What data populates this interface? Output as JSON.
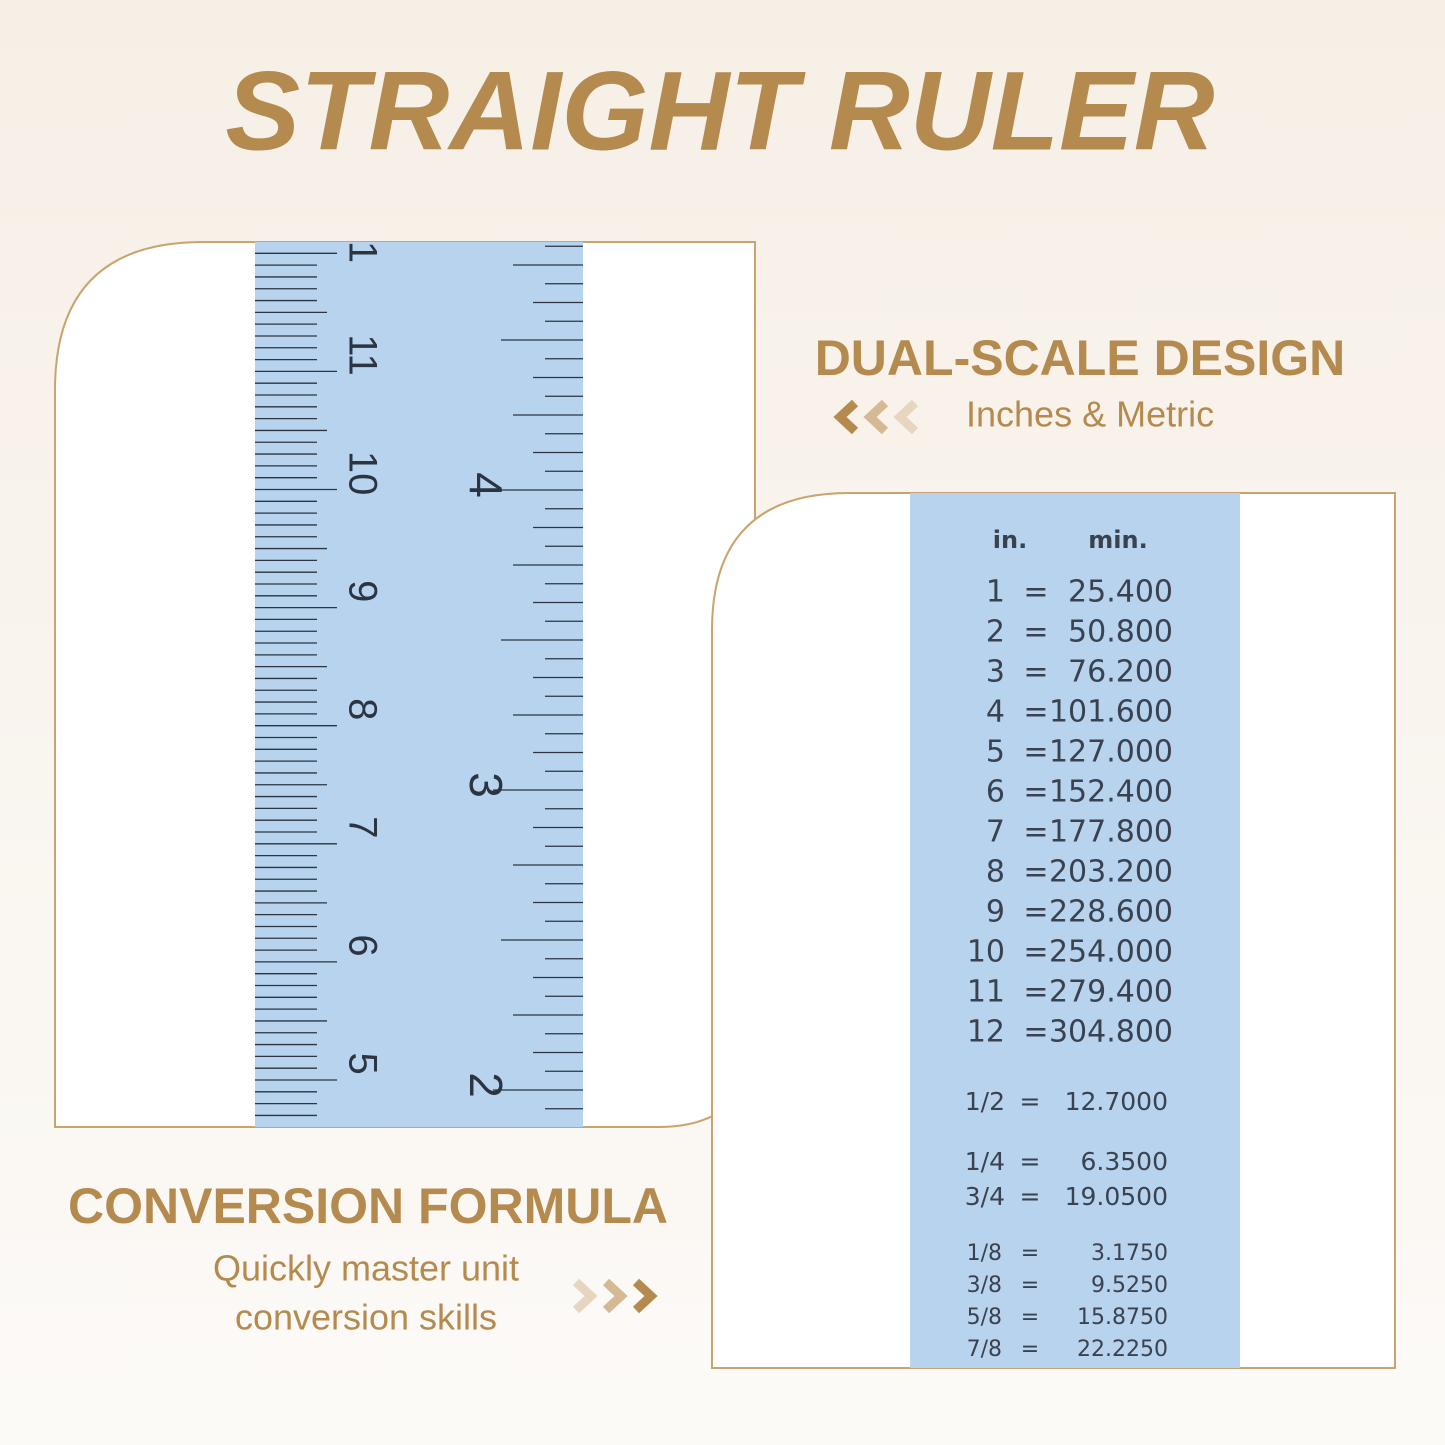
{
  "title": "STRAIGHT RULER",
  "features": [
    {
      "heading": "DUAL-SCALE DESIGN",
      "lines": [
        "Inches & Metric"
      ]
    },
    {
      "heading": "CONVERSION FORMULA",
      "lines": [
        "Quickly master unit",
        "conversion skills"
      ]
    }
  ],
  "ruler": {
    "cm_labels": [
      "1",
      "11",
      "10",
      "9",
      "8",
      "7",
      "6",
      "5"
    ],
    "inch_labels": [
      "4",
      "3",
      "2"
    ]
  },
  "conversion": {
    "header": [
      "in.",
      "min."
    ],
    "separator": "=",
    "rows": [
      [
        "1",
        "25.400"
      ],
      [
        "2",
        "50.800"
      ],
      [
        "3",
        "76.200"
      ],
      [
        "4",
        "101.600"
      ],
      [
        "5",
        "127.000"
      ],
      [
        "6",
        "152.400"
      ],
      [
        "7",
        "177.800"
      ],
      [
        "8",
        "203.200"
      ],
      [
        "9",
        "228.600"
      ],
      [
        "10",
        "254.000"
      ],
      [
        "11",
        "279.400"
      ],
      [
        "12",
        "304.800"
      ],
      [
        "1/2",
        "12.7000"
      ],
      [
        "1/4",
        "6.3500"
      ],
      [
        "3/4",
        "19.0500"
      ],
      [
        "1/8",
        "3.1750"
      ],
      [
        "3/8",
        "9.5250"
      ],
      [
        "5/8",
        "15.8750"
      ],
      [
        "7/8",
        "22.2250"
      ]
    ]
  }
}
